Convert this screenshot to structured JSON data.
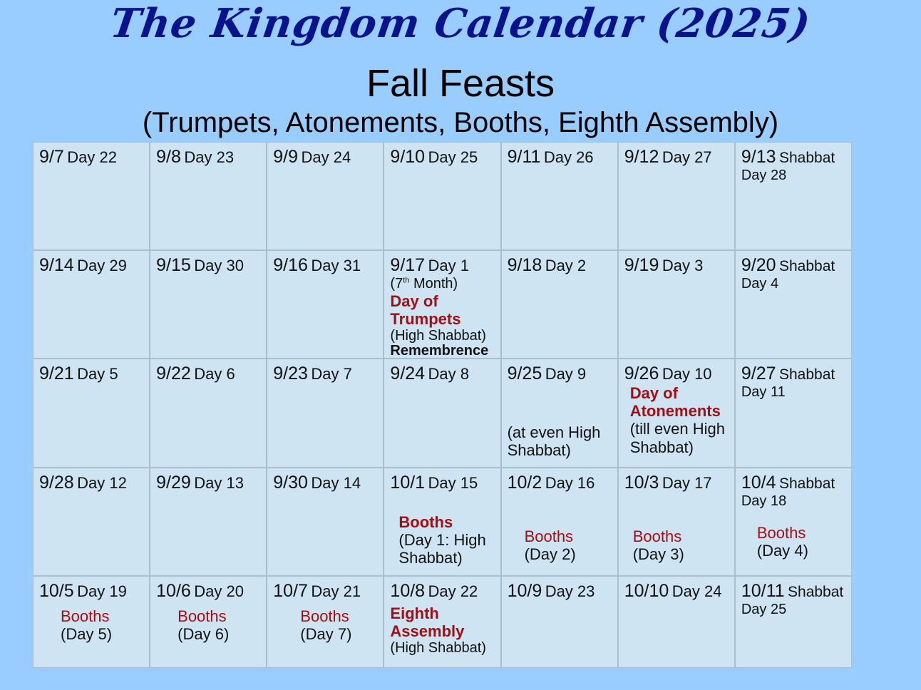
{
  "header": {
    "title": "The Kingdom Calendar (2025)",
    "subtitle": "Fall Feasts",
    "feasts": "(Trumpets, Atonements, Booths, Eighth Assembly)"
  },
  "colors": {
    "background": "#99ccff",
    "cell": "#cfe4f3",
    "title": "#0a128c",
    "feast": "#a50d12"
  },
  "cells": [
    {
      "date": "9/7",
      "day": "Day 22"
    },
    {
      "date": "9/8",
      "day": "Day 23"
    },
    {
      "date": "9/9",
      "day": "Day 24"
    },
    {
      "date": "9/10",
      "day": "Day 25"
    },
    {
      "date": "9/11",
      "day": "Day 26"
    },
    {
      "date": "9/12",
      "day": "Day 27"
    },
    {
      "date": "9/13",
      "shabbat": "Shabbat",
      "day": "Day 28"
    },
    {
      "date": "9/14",
      "day": "Day 29"
    },
    {
      "date": "9/15",
      "day": "Day 30"
    },
    {
      "date": "9/16",
      "day": "Day 31"
    },
    {
      "date": "9/17",
      "day": "Day 1",
      "lines": [
        {
          "parts": [
            {
              "t": "(7"
            },
            {
              "t": "th",
              "sup": true
            },
            {
              "t": " Month)"
            }
          ],
          "style": "small"
        },
        {
          "parts": [
            {
              "t": "Day of"
            }
          ],
          "style": "red bold"
        },
        {
          "parts": [
            {
              "t": "Trumpets"
            }
          ],
          "style": "red bold"
        },
        {
          "parts": [
            {
              "t": "(High Shabbat)"
            }
          ],
          "style": "small"
        },
        {
          "parts": [
            {
              "t": "Remembrence"
            }
          ],
          "style": "bold small"
        }
      ]
    },
    {
      "date": "9/18",
      "day": "Day 2"
    },
    {
      "date": "9/19",
      "day": "Day 3"
    },
    {
      "date": "9/20",
      "shabbat": "Shabbat",
      "day": "Day 4"
    },
    {
      "date": "9/21",
      "day": " Day 5"
    },
    {
      "date": "9/22",
      "day": "Day 6"
    },
    {
      "date": "9/23",
      "day": "Day 7"
    },
    {
      "date": "9/24",
      "day": "Day 8"
    },
    {
      "date": "9/25",
      "day": "Day 9",
      "lines": [
        {
          "parts": [
            {
              "t": "(at even High"
            }
          ],
          "style": ""
        },
        {
          "parts": [
            {
              "t": "Shabbat)"
            }
          ],
          "style": ""
        }
      ]
    },
    {
      "date": "9/26",
      "day": "Day 10",
      "lines": [
        {
          "parts": [
            {
              "t": "Day of"
            }
          ],
          "style": "red bold"
        },
        {
          "parts": [
            {
              "t": "Atonements"
            }
          ],
          "style": "red bold"
        },
        {
          "parts": [
            {
              "t": "(till even High"
            }
          ],
          "style": ""
        },
        {
          "parts": [
            {
              "t": "Shabbat)"
            }
          ],
          "style": ""
        }
      ]
    },
    {
      "date": "9/27",
      "shabbat": "Shabbat",
      "day": "Day 11"
    },
    {
      "date": "9/28",
      "day": "Day 12"
    },
    {
      "date": "9/29",
      "day": "Day 13"
    },
    {
      "date": "9/30",
      "day": "Day 14"
    },
    {
      "date": "10/1",
      "day": "Day 15",
      "lines": [
        {
          "parts": [
            {
              "t": "Booths"
            }
          ],
          "style": "red bold"
        },
        {
          "parts": [
            {
              "t": "(Day 1: High"
            }
          ],
          "style": ""
        },
        {
          "parts": [
            {
              "t": "Shabbat)"
            }
          ],
          "style": ""
        }
      ]
    },
    {
      "date": "10/2",
      "day": "Day 16",
      "lines": [
        {
          "parts": [
            {
              "t": "Booths"
            }
          ],
          "style": "red"
        },
        {
          "parts": [
            {
              "t": "(Day 2)"
            }
          ],
          "style": ""
        }
      ]
    },
    {
      "date": "10/3",
      "day": "Day 17",
      "lines": [
        {
          "parts": [
            {
              "t": "Booths"
            }
          ],
          "style": "red"
        },
        {
          "parts": [
            {
              "t": "(Day 3)"
            }
          ],
          "style": ""
        }
      ]
    },
    {
      "date": "10/4",
      "shabbat": "Shabbat",
      "day": "Day 18",
      "lines": [
        {
          "parts": [
            {
              "t": "Booths"
            }
          ],
          "style": "red"
        },
        {
          "parts": [
            {
              "t": "(Day 4)"
            }
          ],
          "style": ""
        }
      ]
    },
    {
      "date": "10/5",
      "day": "Day 19",
      "lines": [
        {
          "parts": [
            {
              "t": "Booths"
            }
          ],
          "style": "red"
        },
        {
          "parts": [
            {
              "t": "(Day 5)"
            }
          ],
          "style": ""
        }
      ]
    },
    {
      "date": "10/6",
      "day": "Day 20",
      "lines": [
        {
          "parts": [
            {
              "t": "Booths"
            }
          ],
          "style": "red"
        },
        {
          "parts": [
            {
              "t": "(Day 6)"
            }
          ],
          "style": ""
        }
      ]
    },
    {
      "date": "10/7",
      "day": "Day 21",
      "lines": [
        {
          "parts": [
            {
              "t": "Booths"
            }
          ],
          "style": "red"
        },
        {
          "parts": [
            {
              "t": "(Day 7)"
            }
          ],
          "style": ""
        }
      ]
    },
    {
      "date": "10/8",
      "day": "Day 22",
      "lines": [
        {
          "parts": [
            {
              "t": "Eighth"
            }
          ],
          "style": "red bold"
        },
        {
          "parts": [
            {
              "t": "Assembly"
            }
          ],
          "style": "red bold"
        },
        {
          "parts": [
            {
              "t": "(High Shabbat)"
            }
          ],
          "style": "small"
        }
      ]
    },
    {
      "date": "10/9",
      "day": "Day 23"
    },
    {
      "date": "10/10",
      "day": "Day 24"
    },
    {
      "date": "10/11",
      "shabbat": "Shabbat",
      "day": "Day 25"
    }
  ]
}
